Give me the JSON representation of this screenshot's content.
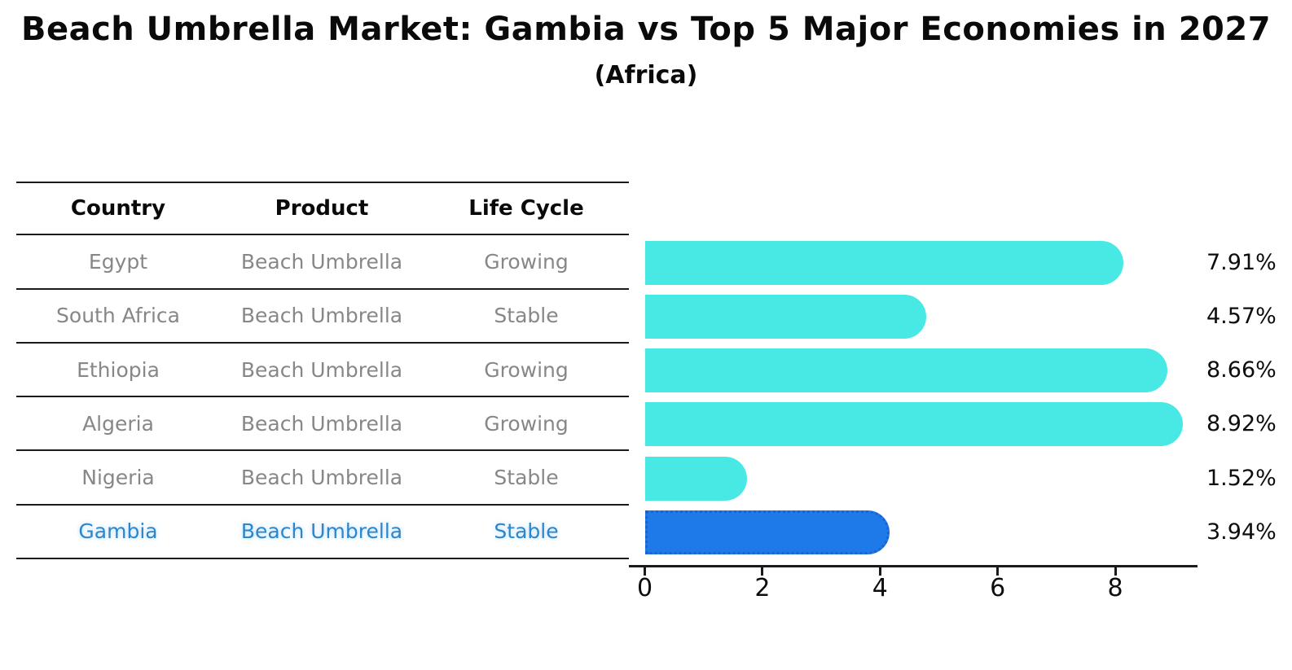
{
  "title": "Beach Umbrella Market: Gambia vs Top 5 Major Economies in 2027",
  "subtitle": "(Africa)",
  "table": {
    "headers": [
      "Country",
      "Product",
      "Life Cycle"
    ],
    "rows": [
      {
        "country": "Egypt",
        "product": "Beach Umbrella",
        "life_cycle": "Growing",
        "highlight": false
      },
      {
        "country": "South Africa",
        "product": "Beach Umbrella",
        "life_cycle": "Stable",
        "highlight": false
      },
      {
        "country": "Ethiopia",
        "product": "Beach Umbrella",
        "life_cycle": "Growing",
        "highlight": false
      },
      {
        "country": "Algeria",
        "product": "Beach Umbrella",
        "life_cycle": "Growing",
        "highlight": false
      },
      {
        "country": "Nigeria",
        "product": "Beach Umbrella",
        "life_cycle": "Stable",
        "highlight": false
      },
      {
        "country": "Gambia",
        "product": "Beach Umbrella",
        "life_cycle": "Stable",
        "highlight": true
      }
    ]
  },
  "chart_data": {
    "type": "bar",
    "orientation": "horizontal",
    "title": "Beach Umbrella Market: Gambia vs Top 5 Major Economies in 2027",
    "subtitle": "(Africa)",
    "categories": [
      "Egypt",
      "South Africa",
      "Ethiopia",
      "Algeria",
      "Nigeria",
      "Gambia"
    ],
    "values": [
      7.91,
      4.57,
      8.66,
      8.92,
      1.52,
      3.94
    ],
    "value_labels": [
      "7.91%",
      "4.57%",
      "8.66%",
      "8.92%",
      "1.52%",
      "3.94%"
    ],
    "xticks": [
      0,
      2,
      4,
      6,
      8
    ],
    "xlim": [
      0,
      9.4
    ],
    "grid": false,
    "legend": false,
    "bar_color": "#48e8e4",
    "highlight_index": 5,
    "highlight_color": "#1e7ae8",
    "highlight_border_color": "#1d63cf"
  },
  "colors": {
    "row_text": "#878787",
    "highlight_text": "#2e86c8",
    "header_text": "#0a0a0a",
    "label_text": "#0d0d0d",
    "line": "#1a1a1a"
  }
}
